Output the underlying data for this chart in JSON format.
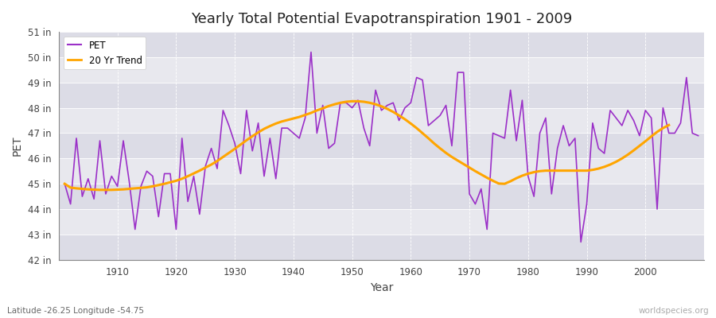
{
  "title": "Yearly Total Potential Evapotranspiration 1901 - 2009",
  "xlabel": "Year",
  "ylabel": "PET",
  "subtitle": "Latitude -26.25 Longitude -54.75",
  "watermark": "worldspecies.org",
  "ylim": [
    42,
    51
  ],
  "ytick_labels": [
    "42 in",
    "43 in",
    "44 in",
    "45 in",
    "46 in",
    "47 in",
    "48 in",
    "49 in",
    "50 in",
    "51 in"
  ],
  "ytick_values": [
    42,
    43,
    44,
    45,
    46,
    47,
    48,
    49,
    50,
    51
  ],
  "pet_color": "#9B30C8",
  "trend_color": "#FFA500",
  "bg_color": "#E8E8EE",
  "band_colors": [
    "#DCDCE6",
    "#E8E8EE"
  ],
  "years": [
    1901,
    1902,
    1903,
    1904,
    1905,
    1906,
    1907,
    1908,
    1909,
    1910,
    1911,
    1912,
    1913,
    1914,
    1915,
    1916,
    1917,
    1918,
    1919,
    1920,
    1921,
    1922,
    1923,
    1924,
    1925,
    1926,
    1927,
    1928,
    1929,
    1930,
    1931,
    1932,
    1933,
    1934,
    1935,
    1936,
    1937,
    1938,
    1939,
    1940,
    1941,
    1942,
    1943,
    1944,
    1945,
    1946,
    1947,
    1948,
    1949,
    1950,
    1951,
    1952,
    1953,
    1954,
    1955,
    1956,
    1957,
    1958,
    1959,
    1960,
    1961,
    1962,
    1963,
    1964,
    1965,
    1966,
    1967,
    1968,
    1969,
    1970,
    1971,
    1972,
    1973,
    1974,
    1975,
    1976,
    1977,
    1978,
    1979,
    1980,
    1981,
    1982,
    1983,
    1984,
    1985,
    1986,
    1987,
    1988,
    1989,
    1990,
    1991,
    1992,
    1993,
    1994,
    1995,
    1996,
    1997,
    1998,
    1999,
    2000,
    2001,
    2002,
    2003,
    2004,
    2005,
    2006,
    2007,
    2008,
    2009
  ],
  "pet_values": [
    45.0,
    44.2,
    46.8,
    44.5,
    45.2,
    44.4,
    46.7,
    44.6,
    45.3,
    44.9,
    46.7,
    45.1,
    43.2,
    44.9,
    45.5,
    45.3,
    43.7,
    45.4,
    45.4,
    43.2,
    46.8,
    44.3,
    45.3,
    43.8,
    45.7,
    46.4,
    45.6,
    47.9,
    47.3,
    46.6,
    45.4,
    47.9,
    46.3,
    47.4,
    45.3,
    46.8,
    45.2,
    47.2,
    47.2,
    47.0,
    46.8,
    47.6,
    50.2,
    47.0,
    48.1,
    46.4,
    46.6,
    48.2,
    48.2,
    48.0,
    48.3,
    47.2,
    46.5,
    48.7,
    47.9,
    48.1,
    48.2,
    47.5,
    48.0,
    48.2,
    49.2,
    49.1,
    47.3,
    47.5,
    47.7,
    48.1,
    46.5,
    49.4,
    49.4,
    44.6,
    44.2,
    44.8,
    43.2,
    47.0,
    46.9,
    46.8,
    48.7,
    46.7,
    48.3,
    45.3,
    44.5,
    47.0,
    47.6,
    44.6,
    46.4,
    47.3,
    46.5,
    46.8,
    42.7,
    44.2,
    47.4,
    46.4,
    46.2,
    47.9,
    47.6,
    47.3,
    47.9,
    47.5,
    46.9,
    47.9,
    47.6,
    44.0,
    48.0,
    47.0,
    47.0,
    47.4,
    49.2,
    47.0,
    46.9
  ],
  "trend_values": [
    45.0,
    44.85,
    44.82,
    44.8,
    44.78,
    44.77,
    44.76,
    44.76,
    44.76,
    44.77,
    44.78,
    44.8,
    44.82,
    44.84,
    44.86,
    44.9,
    44.95,
    45.0,
    45.06,
    45.12,
    45.2,
    45.3,
    45.41,
    45.52,
    45.64,
    45.76,
    45.9,
    46.06,
    46.22,
    46.38,
    46.55,
    46.72,
    46.88,
    47.03,
    47.17,
    47.28,
    47.38,
    47.46,
    47.52,
    47.58,
    47.64,
    47.72,
    47.8,
    47.9,
    47.98,
    48.07,
    48.14,
    48.2,
    48.24,
    48.26,
    48.26,
    48.24,
    48.2,
    48.14,
    48.06,
    47.96,
    47.84,
    47.7,
    47.55,
    47.38,
    47.2,
    47.0,
    46.8,
    46.59,
    46.4,
    46.22,
    46.06,
    45.92,
    45.78,
    45.64,
    45.5,
    45.37,
    45.24,
    45.12,
    45.01,
    45.0,
    45.1,
    45.22,
    45.32,
    45.4,
    45.46,
    45.5,
    45.52,
    45.52,
    45.52,
    45.52,
    45.52,
    45.52,
    45.52,
    45.52,
    45.55,
    45.6,
    45.67,
    45.76,
    45.87,
    46.0,
    46.15,
    46.32,
    46.5,
    46.68,
    46.87,
    47.05,
    47.2,
    47.32,
    null,
    null,
    null,
    null,
    null
  ]
}
